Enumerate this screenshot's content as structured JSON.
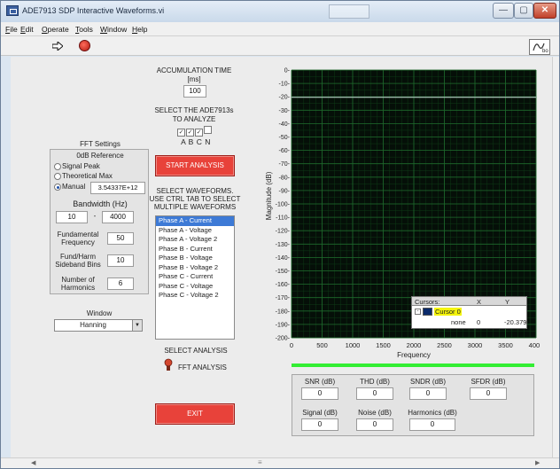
{
  "window": {
    "title": "ADE7913 SDP Interactive Waveforms.vi"
  },
  "menu": [
    "File",
    "Edit",
    "Operate",
    "Tools",
    "Window",
    "Help"
  ],
  "accumulation": {
    "label_line1": "ACCUMULATION TIME",
    "label_line2": "[ms]",
    "value": "100"
  },
  "select_ade": {
    "label_line1": "SELECT THE ADE7913s",
    "label_line2": "TO ANALYZE",
    "letters": "A B C N"
  },
  "fft_settings": {
    "title": "FFT Settings",
    "ref_label": "0dB Reference",
    "options": [
      "Signal Peak",
      "Theoretical Max",
      "Manual"
    ],
    "manual_value": "3.54337E+12",
    "bandwidth_label": "Bandwidth (Hz)",
    "bw_low": "10",
    "bw_sep": "-",
    "bw_high": "4000",
    "fund_freq_label1": "Fundamental",
    "fund_freq_label2": "Frequency",
    "fund_freq": "50",
    "sideband_label1": "Fund/Harm",
    "sideband_label2": "Sideband Bins",
    "sideband": "10",
    "harmonics_label1": "Number of",
    "harmonics_label2": "Harmonics",
    "harmonics": "6"
  },
  "window_select": {
    "label": "Window",
    "value": "Hanning"
  },
  "start_button": "START ANALYSIS",
  "waveforms": {
    "label_line1": "SELECT WAVEFORMS.",
    "label_line2": "USE CTRL TAB TO SELECT",
    "label_line3": "MULTIPLE WAVEFORMS",
    "items": [
      "Phase A - Current",
      "Phase A - Voltage",
      "Phase A - Voltage 2",
      "Phase B - Current",
      "Phase B - Voltage",
      "Phase B - Voltage 2",
      "Phase C - Current",
      "Phase C - Voltage",
      "Phase C - Voltage 2"
    ]
  },
  "select_analysis": {
    "label": "SELECT ANALYSIS",
    "option": "FFT ANALYSIS"
  },
  "exit_button": "EXIT",
  "chart_data": {
    "type": "line",
    "title": "",
    "xlabel": "Frequency",
    "ylabel": "Magnitude (dB)",
    "xlim": [
      0,
      4000
    ],
    "ylim": [
      -200,
      0
    ],
    "xticks": [
      0,
      500,
      1000,
      1500,
      2000,
      2500,
      3000,
      3500,
      4000
    ],
    "yticks": [
      0,
      -10,
      -20,
      -30,
      -40,
      -50,
      -60,
      -70,
      -80,
      -90,
      -100,
      -110,
      -120,
      -130,
      -140,
      -150,
      -160,
      -170,
      -180,
      -190,
      -200
    ],
    "grid": true,
    "series": [
      {
        "x": [
          0,
          4000
        ],
        "y": [
          -20.379,
          -20.379
        ]
      }
    ]
  },
  "cursors": {
    "header": [
      "Cursors:",
      "X",
      "Y"
    ],
    "name": "Cursor 0",
    "sub": "none",
    "x": "0",
    "y": "-20.379"
  },
  "results": {
    "row1": [
      {
        "label": "SNR (dB)",
        "value": "0"
      },
      {
        "label": "THD (dB)",
        "value": "0"
      },
      {
        "label": "SNDR (dB)",
        "value": "0"
      },
      {
        "label": "SFDR (dB)",
        "value": "0"
      }
    ],
    "row2": [
      {
        "label": "Signal (dB)",
        "value": "0"
      },
      {
        "label": "Noise (dB)",
        "value": "0"
      },
      {
        "label": "Harmonics (dB)",
        "value": "0"
      }
    ]
  },
  "colors": {
    "plot_bg": "#050f08",
    "grid": "#1f6a2c",
    "trace": "#c8d8d8",
    "button_red": "#e8423a",
    "progress": "#33ee33"
  }
}
